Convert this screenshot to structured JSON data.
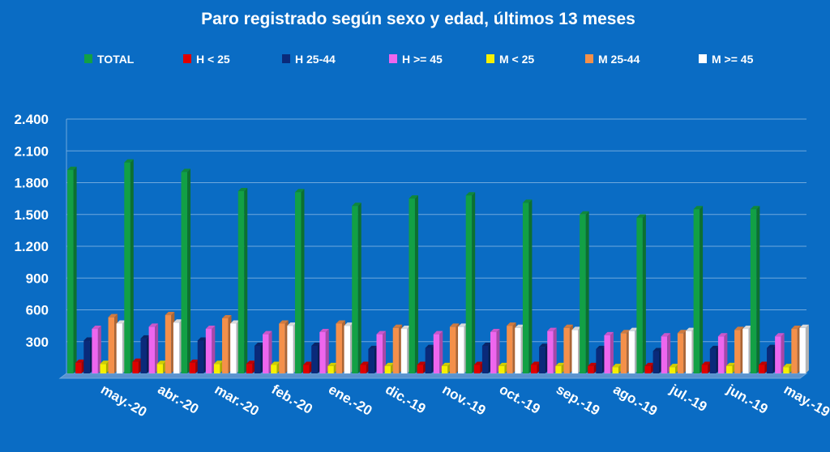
{
  "colors": {
    "background": "#0a6cc4",
    "grid": "#6fa8dc",
    "text": "#ffffff"
  },
  "chart_data": {
    "type": "bar",
    "title": "Paro registrado según sexo y edad, últimos 13 meses",
    "xlabel": "",
    "ylabel": "",
    "ylim": [
      0,
      2400
    ],
    "yticks": [
      300,
      600,
      900,
      1200,
      1500,
      1800,
      2100,
      2400
    ],
    "ytick_labels": [
      "300",
      "600",
      "900",
      "1.200",
      "1.500",
      "1.800",
      "2.100",
      "2.400"
    ],
    "grid": true,
    "legend_position": "top",
    "categories": [
      "may.-20",
      "abr.-20",
      "mar.-20",
      "feb.-20",
      "ene.-20",
      "dic.-19",
      "nov.-19",
      "oct.-19",
      "sep.-19",
      "ago.-19",
      "jul.-19",
      "jun.-19",
      "may.-19"
    ],
    "series": [
      {
        "name": "TOTAL",
        "color": "#12a045",
        "values": [
          1920,
          1990,
          1900,
          1720,
          1710,
          1580,
          1650,
          1680,
          1610,
          1500,
          1470,
          1550,
          1550
        ]
      },
      {
        "name": "H < 25",
        "color": "#e00000",
        "values": [
          100,
          110,
          100,
          90,
          80,
          80,
          80,
          80,
          80,
          70,
          70,
          80,
          80
        ]
      },
      {
        "name": "H 25-44",
        "color": "#0a2a7a",
        "values": [
          310,
          330,
          310,
          260,
          260,
          230,
          240,
          260,
          250,
          230,
          210,
          230,
          240
        ]
      },
      {
        "name": "H >= 45",
        "color": "#ee66ee",
        "values": [
          420,
          440,
          420,
          370,
          390,
          370,
          370,
          390,
          400,
          360,
          350,
          350,
          350
        ]
      },
      {
        "name": "M < 25",
        "color": "#f6f000",
        "values": [
          90,
          90,
          90,
          80,
          70,
          70,
          70,
          70,
          70,
          60,
          60,
          70,
          60
        ]
      },
      {
        "name": "M 25-44",
        "color": "#f4904a",
        "values": [
          530,
          550,
          520,
          470,
          470,
          430,
          440,
          450,
          430,
          380,
          380,
          410,
          420
        ]
      },
      {
        "name": "M >= 45",
        "color": "#ffffff",
        "values": [
          470,
          480,
          470,
          450,
          450,
          420,
          440,
          430,
          410,
          400,
          400,
          420,
          430
        ]
      }
    ]
  }
}
